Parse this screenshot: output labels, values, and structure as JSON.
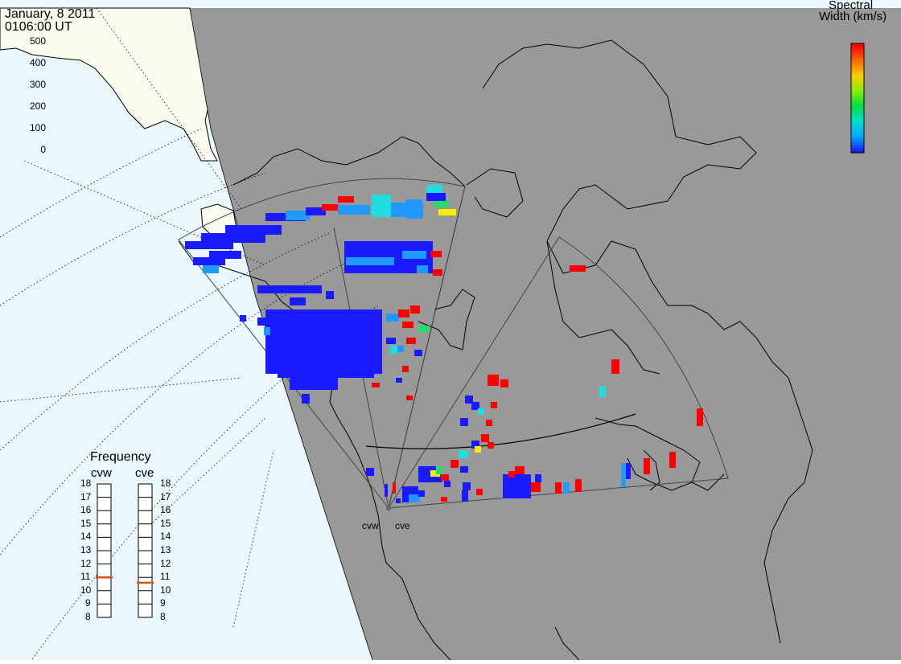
{
  "header": {
    "date": "January, 8 2011",
    "time": "0106:00 UT"
  },
  "colorbar": {
    "title_line1": "Spectral",
    "title_line2": "Width (km/s)",
    "ticks": [
      "500",
      "400",
      "300",
      "200",
      "100",
      "0"
    ],
    "colors": [
      "#ff0000",
      "#ff6600",
      "#ffcc00",
      "#88ee00",
      "#00dd44",
      "#00ddcc",
      "#00aaff",
      "#1a1aff"
    ]
  },
  "radars": [
    {
      "name": "cvw",
      "frequency_mhz": 11.0
    },
    {
      "name": "cve",
      "frequency_mhz": 10.6
    }
  ],
  "frequency_panel": {
    "title": "Frequency",
    "ticks": [
      "18",
      "17",
      "16",
      "15",
      "14",
      "13",
      "12",
      "11",
      "10",
      "9",
      "8"
    ],
    "min": 8,
    "max": 18
  },
  "palette": {
    "ocean": "#eaf7fd",
    "land_day": "#fbfaee",
    "night": "#999999",
    "freq_marker": "#e05010",
    "radar_site": "#666666"
  }
}
